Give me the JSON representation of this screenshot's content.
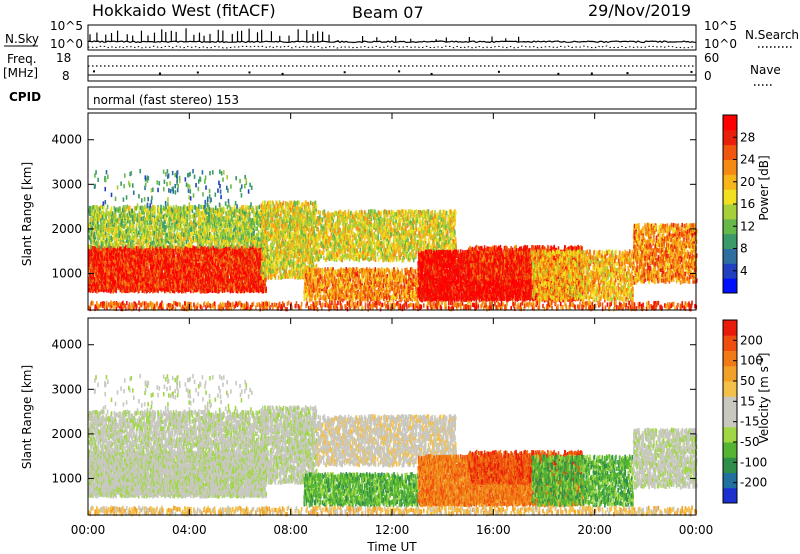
{
  "header": {
    "station": "Hokkaido West (fitACF)",
    "beam": "Beam 07",
    "date": "29/Nov/2019"
  },
  "top_panels": {
    "nsky_label": "N.Sky",
    "nsky_scale_top": "10^5",
    "nsky_scale_bottom": "10^0",
    "nsearch_label": "N.Search",
    "nsearch_scale_top": "10^5",
    "nsearch_scale_bottom": "10^0",
    "freq_label_line1": "Freq.",
    "freq_label_line2": "[MHz]",
    "freq_scale_top": "18",
    "freq_scale_bottom": "8",
    "nave_label": "Nave",
    "nave_scale_top": "60",
    "nave_scale_bottom": "0",
    "cpid_label": "CPID",
    "cpid_text": "normal (fast stereo) 153"
  },
  "chart_data": [
    {
      "type": "heatmap",
      "parameter": "Power",
      "ylabel": "Slant Range [km]",
      "xlabel": "Time UT",
      "xlim": [
        "00:00",
        "24:00"
      ],
      "ylim": [
        180,
        4600
      ],
      "x_ticks": [
        "00:00",
        "04:00",
        "08:00",
        "12:00",
        "16:00",
        "20:00",
        "00:00"
      ],
      "y_ticks": [
        1000,
        2000,
        3000,
        4000
      ],
      "colorbar": {
        "label": "Power [dB]",
        "range": [
          0,
          32
        ],
        "tick_labels": [
          "4",
          "8",
          "12",
          "16",
          "20",
          "24",
          "28"
        ],
        "colors": [
          "#0010ff",
          "#2040c0",
          "#2f6fa0",
          "#3a9a6a",
          "#66b84a",
          "#a6cf3a",
          "#f0e020",
          "#f7b51a",
          "#f58a12",
          "#f0560e",
          "#e8200a",
          "#ff0000"
        ]
      }
    },
    {
      "type": "heatmap",
      "parameter": "Velocity",
      "ylabel": "Slant Range [km]",
      "xlabel": "Time UT",
      "xlim": [
        "00:00",
        "24:00"
      ],
      "ylim": [
        180,
        4600
      ],
      "x_ticks": [
        "00:00",
        "04:00",
        "08:00",
        "12:00",
        "16:00",
        "20:00",
        "00:00"
      ],
      "y_ticks": [
        1000,
        2000,
        3000,
        4000
      ],
      "colorbar": {
        "label_main": "Velocity [m s",
        "label_exp": "-1",
        "label_close": "]",
        "range": [
          -250,
          250
        ],
        "tick_labels": [
          "200",
          "100",
          "50",
          "15",
          "-15",
          "-50",
          "-100",
          "-200"
        ],
        "colors": [
          "#1c2fcf",
          "#2070a0",
          "#2f8f4a",
          "#55b533",
          "#9fd843",
          "#c8c8c0",
          "#c8c8c0",
          "#f5c04a",
          "#f3a028",
          "#f07a14",
          "#ef4e0e",
          "#e81b0a"
        ]
      }
    }
  ]
}
